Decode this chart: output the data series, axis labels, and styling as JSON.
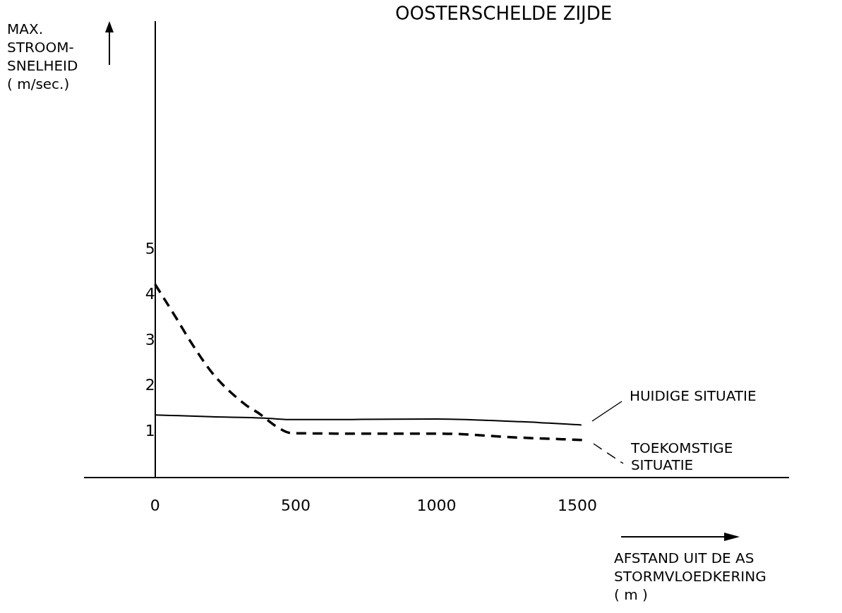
{
  "chart_data": {
    "type": "line",
    "title": "OOSTERSCHELDE ZIJDE",
    "xlabel": "AFSTAND UIT DE AS STORMVLOEDKERING ( m )",
    "ylabel": "MAX. STROOM-SNELHEID ( m/sec.)",
    "xlim": [
      -250,
      2250
    ],
    "xticks": [
      0,
      500,
      1000,
      1500
    ],
    "ylim": [
      0,
      10
    ],
    "yticks": [
      1,
      2,
      3,
      4,
      5
    ],
    "grid": false,
    "legend": "right",
    "marker": "none",
    "series": [
      {
        "name": "HUIDIGE SITUATIE",
        "color": "#000000",
        "line_style": "solid",
        "x": [
          0,
          200,
          390,
          465,
          700,
          1000,
          1300,
          1515
        ],
        "values": [
          1.37,
          1.33,
          1.3,
          1.27,
          1.27,
          1.28,
          1.22,
          1.15
        ]
      },
      {
        "name": "TOEKOMSTIGE SITUATIE",
        "color": "#000000",
        "line_style": "dashed",
        "x": [
          0,
          75,
          125,
          210,
          320,
          370,
          430,
          486,
          700,
          1000,
          1300,
          1520
        ],
        "values": [
          4.24,
          3.5,
          2.99,
          2.24,
          1.6,
          1.4,
          1.12,
          0.97,
          0.96,
          0.96,
          0.87,
          0.82
        ]
      }
    ]
  }
}
